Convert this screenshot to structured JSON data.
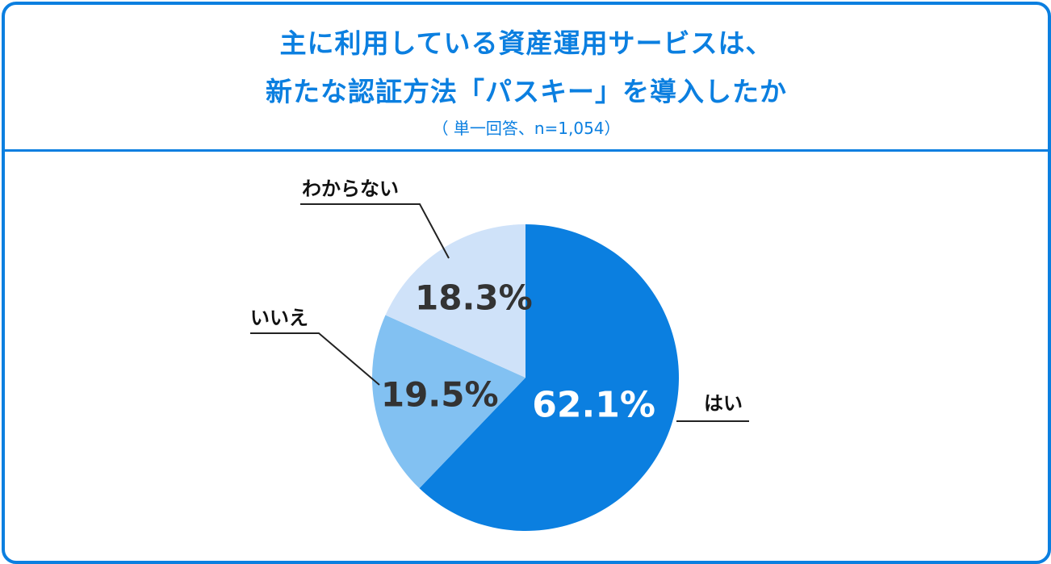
{
  "header": {
    "title_line1": "主に利用している資産運用サービスは、",
    "title_line2": "新たな認証方法「パスキー」を導入したか",
    "subtitle": "（ 単一回答、n=1,054）"
  },
  "colors": {
    "accent": "#0b7fe0",
    "yes": "#0b7fe0",
    "no": "#82c1f2",
    "unknown": "#cfe2f9",
    "label_dark": "#333333",
    "label_light": "#ffffff"
  },
  "chart_data": {
    "type": "pie",
    "title": "主に利用している資産運用サービスは、新たな認証方法「パスキー」を導入したか",
    "subtitle": "（ 単一回答、n=1,054）",
    "start": "12 o'clock",
    "direction": "clockwise",
    "slices": [
      {
        "label": "はい",
        "value": 62.1,
        "value_label": "62.1%",
        "color": "#0b7fe0",
        "value_label_color": "#ffffff"
      },
      {
        "label": "いいえ",
        "value": 19.5,
        "value_label": "19.5%",
        "color": "#82c1f2",
        "value_label_color": "#333333"
      },
      {
        "label": "わからない",
        "value": 18.3,
        "value_label": "18.3%",
        "color": "#cfe2f9",
        "value_label_color": "#333333"
      }
    ]
  }
}
